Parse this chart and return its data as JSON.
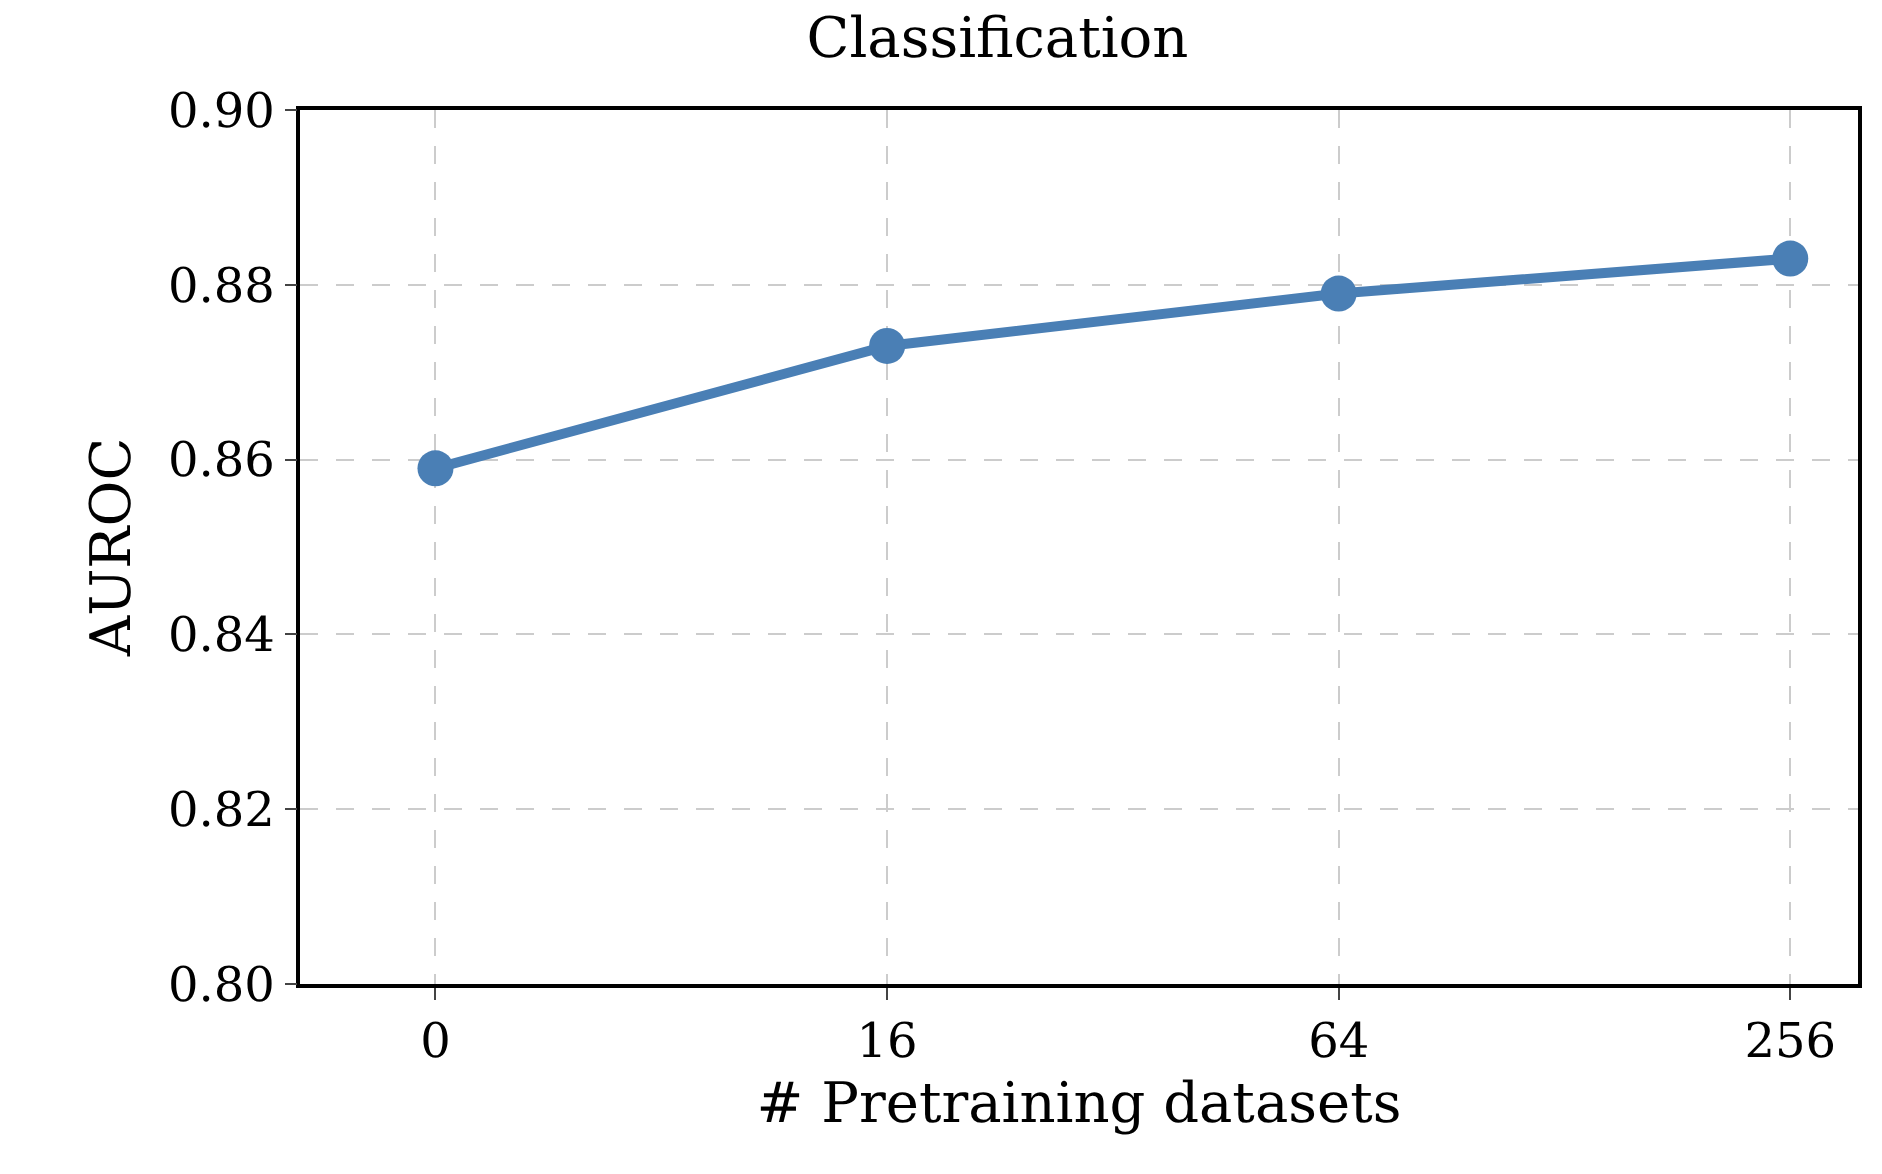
{
  "chart_data": {
    "type": "line",
    "title": "Classification",
    "xlabel": "# Pretraining datasets",
    "ylabel": "AUROC",
    "categories": [
      "0",
      "16",
      "64",
      "256"
    ],
    "series": [
      {
        "color": "#4a7fb5",
        "values": [
          0.859,
          0.873,
          0.879,
          0.883
        ]
      }
    ],
    "ylim": [
      0.8,
      0.9
    ],
    "yticks": [
      {
        "value": 0.8,
        "label": "0.80"
      },
      {
        "value": 0.82,
        "label": "0.82"
      },
      {
        "value": 0.84,
        "label": "0.84"
      },
      {
        "value": 0.86,
        "label": "0.86"
      },
      {
        "value": 0.88,
        "label": "0.88"
      },
      {
        "value": 0.9,
        "label": "0.90"
      }
    ],
    "grid": true,
    "marker": "circle",
    "line_style": "solid"
  }
}
